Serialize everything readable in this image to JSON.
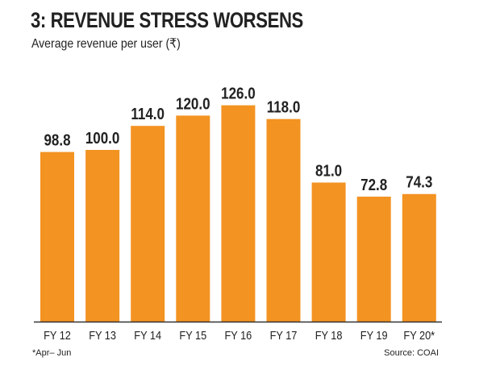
{
  "chart_data": {
    "type": "bar",
    "title": "3:  REVENUE STRESS WORSENS",
    "subtitle": "Average revenue per user (₹)",
    "xlabel": "",
    "ylabel": "",
    "categories": [
      "FY 12",
      "FY 13",
      "FY 14",
      "FY 15",
      "FY 16",
      "FY 17",
      "FY 18",
      "FY 19",
      "FY 20*"
    ],
    "values": [
      98.8,
      100.0,
      114.0,
      120.0,
      126.0,
      118.0,
      81.0,
      72.8,
      74.3
    ],
    "value_labels": [
      "98.8",
      "100.0",
      "114.0",
      "120.0",
      "126.0",
      "118.0",
      "81.0",
      "72.8",
      "74.3"
    ],
    "ylim": [
      0,
      130
    ],
    "grid": false,
    "bar_color": "#f39322",
    "axis_color": "#333333",
    "footnote": "*Apr– Jun",
    "source": "Source: COAI"
  }
}
